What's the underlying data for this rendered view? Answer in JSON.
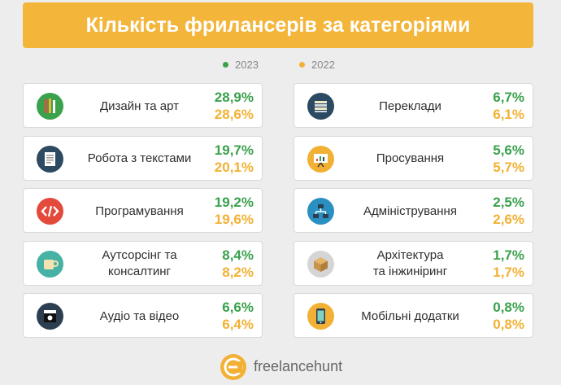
{
  "title": "Кількість фрилансерів за категоріями",
  "brand": "freelancehunt",
  "colors": {
    "banner": "#f3b53a",
    "y2023": "#3aa14c",
    "y2022": "#f2b134"
  },
  "chart_data": {
    "type": "table",
    "title": "Кількість фрилансерів за категоріями",
    "series": [
      {
        "name": "2023",
        "color": "#3aa14c"
      },
      {
        "name": "2022",
        "color": "#f2b134"
      }
    ],
    "categories": [
      {
        "label": "Дизайн та арт",
        "icon": "pencils-icon",
        "v2023": "28,9%",
        "v2022": "28,6%"
      },
      {
        "label": "Робота з текстами",
        "icon": "document-icon",
        "v2023": "19,7%",
        "v2022": "20,1%"
      },
      {
        "label": "Програмування",
        "icon": "code-icon",
        "v2023": "19,2%",
        "v2022": "19,6%"
      },
      {
        "label": "Аутсорсінг та\nконсалтинг",
        "icon": "cup-icon",
        "v2023": "8,4%",
        "v2022": "8,2%"
      },
      {
        "label": "Аудіо та відео",
        "icon": "clapperboard-icon",
        "v2023": "6,6%",
        "v2022": "6,4%"
      },
      {
        "label": "Переклади",
        "icon": "books-icon",
        "v2023": "6,7%",
        "v2022": "6,1%"
      },
      {
        "label": "Просування",
        "icon": "presentation-icon",
        "v2023": "5,6%",
        "v2022": "5,7%"
      },
      {
        "label": "Адміністрування",
        "icon": "network-icon",
        "v2023": "2,5%",
        "v2022": "2,6%"
      },
      {
        "label": "Архітектура\nта інжиніринг",
        "icon": "box-icon",
        "v2023": "1,7%",
        "v2022": "1,7%"
      },
      {
        "label": "Мобільні додатки",
        "icon": "phone-icon",
        "v2023": "0,8%",
        "v2022": "0,8%"
      }
    ]
  }
}
